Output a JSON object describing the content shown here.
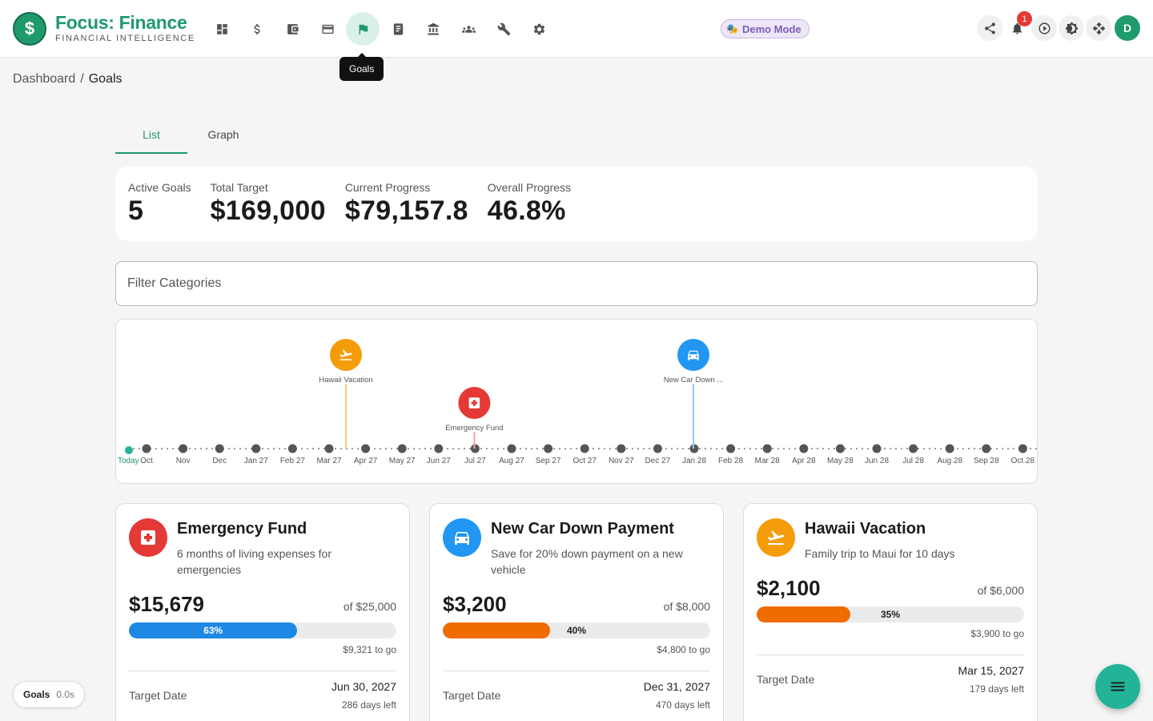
{
  "header": {
    "logo_glyph": "$",
    "brand_title": "Focus: Finance",
    "brand_subtitle": "FINANCIAL INTELLIGENCE",
    "nav_icons": [
      "dashboard-icon",
      "dollar-icon",
      "wallet-icon",
      "credit-card-icon",
      "flag-icon",
      "receipt-icon",
      "bank-icon",
      "people-icon",
      "wrench-icon",
      "gear-icon"
    ],
    "active_nav": "flag-icon",
    "tooltip": "Goals",
    "demo_label": "Demo Mode",
    "notification_count": "1",
    "avatar_initial": "D",
    "accent_color": "#1f9a6c"
  },
  "breadcrumb": {
    "root": "Dashboard",
    "separator": "/",
    "current": "Goals"
  },
  "tabs": [
    {
      "label": "List",
      "active": true
    },
    {
      "label": "Graph",
      "active": false
    }
  ],
  "stats": [
    {
      "label": "Active Goals",
      "value": "5"
    },
    {
      "label": "Total Target",
      "value": "$169,000"
    },
    {
      "label": "Current Progress",
      "value": "$79,157.8"
    },
    {
      "label": "Overall Progress",
      "value": "46.8%"
    }
  ],
  "filter": {
    "placeholder": "Filter Categories"
  },
  "timeline": {
    "today_label": "Today",
    "months": [
      "Oct",
      "Nov",
      "Dec",
      "Jan 27",
      "Feb 27",
      "Mar 27",
      "Apr 27",
      "May 27",
      "Jun 27",
      "Jul 27",
      "Aug 27",
      "Sep 27",
      "Oct 27",
      "Nov 27",
      "Dec 27",
      "Jan 28",
      "Feb 28",
      "Mar 28",
      "Apr 28",
      "May 28",
      "Jun 28",
      "Jul 28",
      "Aug 28",
      "Sep 28",
      "Oct 28"
    ],
    "markers": [
      {
        "label": "Hawaii Vacation",
        "month": "Mar 27",
        "icon": "airplane-icon",
        "color": "#f59c0b",
        "line_color": "#f5c77a"
      },
      {
        "label": "Emergency Fund",
        "month": "Jul 27",
        "icon": "medical-icon",
        "color": "#e53935",
        "line_color": "#f3a7a5"
      },
      {
        "label": "New Car Down ...",
        "month": "Jan 28",
        "icon": "car-icon",
        "color": "#2196f3",
        "line_color": "#9cc9ea"
      }
    ]
  },
  "goals": [
    {
      "title": "Emergency Fund",
      "description": "6 months of living expenses for emergencies",
      "icon": "medical-icon",
      "icon_color": "#e53935",
      "amount": "$15,679",
      "target": "of $25,000",
      "progress": 0.63,
      "progress_label": "63%",
      "bar_color": "#1e88e5",
      "to_go": "$9,321 to go",
      "target_date_label": "Target Date",
      "target_date": "Jun 30, 2027",
      "days_left": "286 days left"
    },
    {
      "title": "New Car Down Payment",
      "description": "Save for 20% down payment on a new vehicle",
      "icon": "car-icon",
      "icon_color": "#2196f3",
      "amount": "$3,200",
      "target": "of $8,000",
      "progress": 0.4,
      "progress_label": "40%",
      "bar_color": "#ef6c00",
      "to_go": "$4,800 to go",
      "target_date_label": "Target Date",
      "target_date": "Dec 31, 2027",
      "days_left": "470 days left"
    },
    {
      "title": "Hawaii Vacation",
      "description": "Family trip to Maui for 10 days",
      "icon": "airplane-icon",
      "icon_color": "#f59c0b",
      "amount": "$2,100",
      "target": "of $6,000",
      "progress": 0.35,
      "progress_label": "35%",
      "bar_color": "#ef6c00",
      "to_go": "$3,900 to go",
      "target_date_label": "Target Date",
      "target_date": "Mar 15, 2027",
      "days_left": "179 days left"
    }
  ],
  "status_pill": {
    "name": "Goals",
    "time": "0.0s"
  },
  "fab_icon": "menu-icon"
}
